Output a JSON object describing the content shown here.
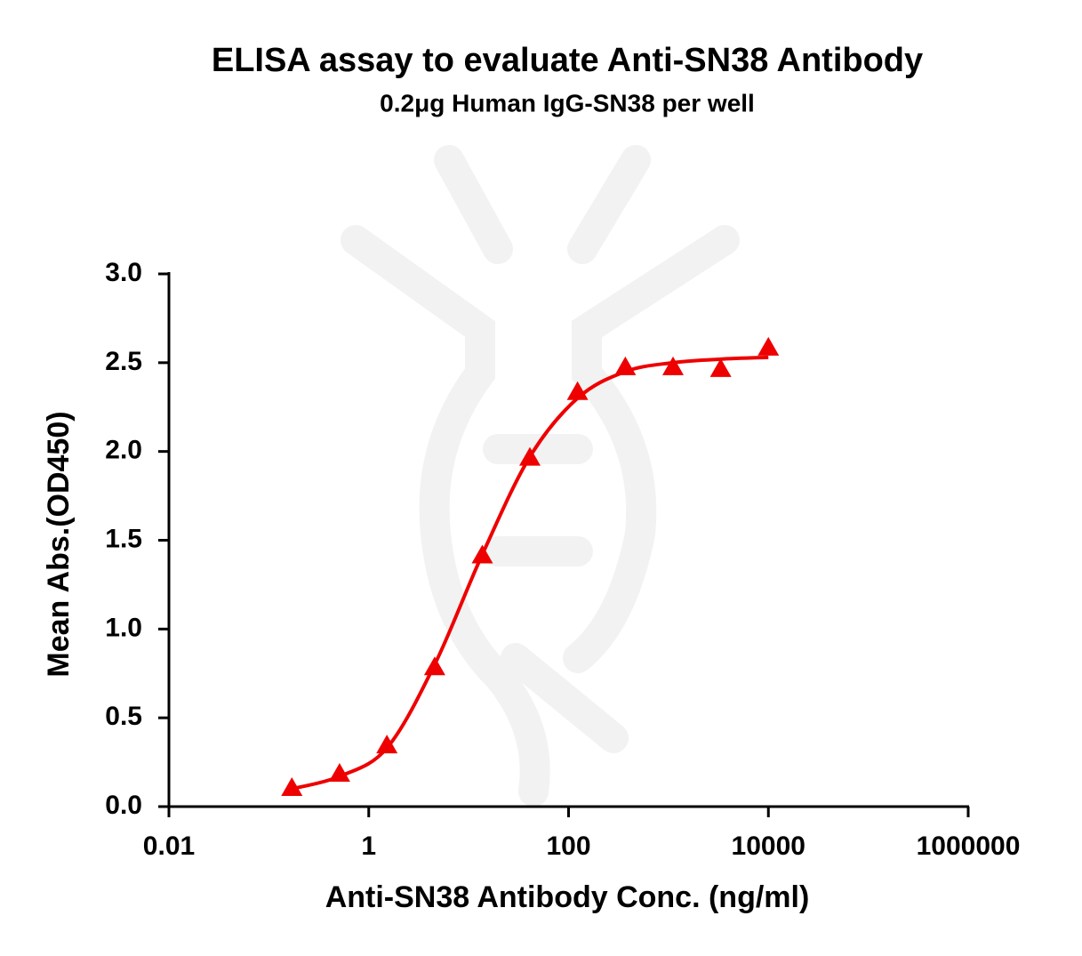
{
  "chart_data": {
    "type": "scatter",
    "title": "ELISA assay to evaluate Anti-SN38 Antibody",
    "subtitle": "0.2μg Human IgG-SN38 per well",
    "x_label": "Anti-SN38 Antibody Conc. (ng/ml)",
    "y_label": "Mean Abs.(OD450)",
    "xscale": "log",
    "xlim": [
      0.01,
      1000000
    ],
    "xticks": [
      0.01,
      1,
      100,
      10000,
      1000000
    ],
    "ylim": [
      0,
      3
    ],
    "yticks": [
      {
        "value": 0,
        "label": "0.0"
      },
      {
        "value": 0.5,
        "label": "0.5"
      },
      {
        "value": 1,
        "label": "1.0"
      },
      {
        "value": 1.5,
        "label": "1.5"
      },
      {
        "value": 2,
        "label": "2.0"
      },
      {
        "value": 2.5,
        "label": "2.5"
      },
      {
        "value": 3,
        "label": "3.0"
      }
    ],
    "color": "#ee0000",
    "x": [
      0.17,
      0.51,
      1.52,
      4.57,
      13.7,
      41,
      123,
      370,
      1111,
      3333,
      10000
    ],
    "values": [
      0.1,
      0.18,
      0.34,
      0.78,
      1.41,
      1.96,
      2.33,
      2.47,
      2.47,
      2.46,
      2.58
    ],
    "fit": {
      "x": [
        0.17,
        0.51,
        1.52,
        4.57,
        13.7,
        41,
        123,
        370,
        1111,
        3333,
        10000
      ],
      "values": [
        0.1,
        0.17,
        0.33,
        0.8,
        1.42,
        1.97,
        2.3,
        2.45,
        2.5,
        2.52,
        2.53
      ]
    }
  }
}
